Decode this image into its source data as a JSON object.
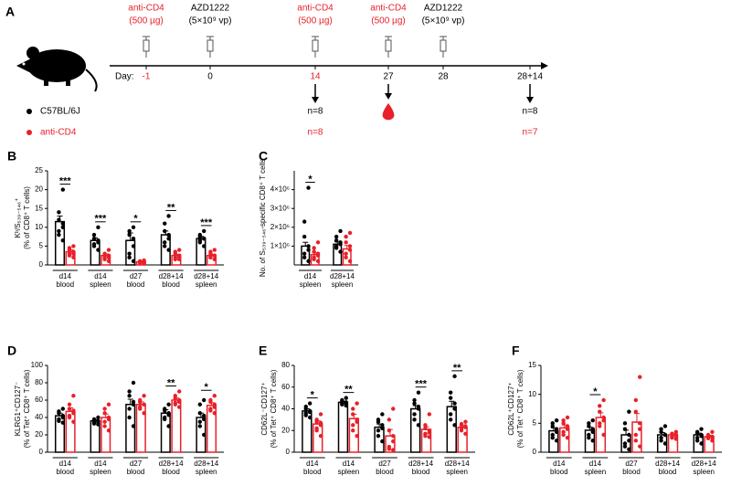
{
  "timeline": {
    "panel": "A",
    "day_label": "Day:",
    "events": [
      {
        "day": "-1",
        "day_color": "#e8202a",
        "treatment": "anti-CD4",
        "dose": "(500 µg)",
        "treatment_color": "#e8202a"
      },
      {
        "day": "0",
        "day_color": "#000000",
        "treatment": "AZD1222",
        "dose": "(5×10⁹ vp)",
        "treatment_color": "#000000"
      },
      {
        "day": "14",
        "day_color": "#e8202a",
        "treatment": "anti-CD4",
        "dose": "(500 µg)",
        "treatment_color": "#e8202a",
        "readout": "arrow",
        "n": [
          "n=8",
          "n=8"
        ]
      },
      {
        "day": "27",
        "day_color": "#000000",
        "treatment": "anti-CD4",
        "dose": "(500 µg)",
        "treatment_color": "#e8202a",
        "readout": "blood"
      },
      {
        "day": "28",
        "day_color": "#000000",
        "treatment": "AZD1222",
        "dose": "(5×10⁹ vp)",
        "treatment_color": "#000000"
      },
      {
        "day": "28+14",
        "day_color": "#000000",
        "readout": "arrow",
        "n": [
          "n=8",
          "n=7"
        ]
      }
    ]
  },
  "chart_data": [
    {
      "type": "bar",
      "panel": "B",
      "y_label": [
        "Kᵇ/S₅₃₉₋₅₄₆⁺",
        "(% of CD8⁺ T cells)"
      ],
      "categories": [
        "d14\nblood",
        "d14\nspleen",
        "d27\nblood",
        "d28+14\nblood",
        "d28+14\nspleen"
      ],
      "ylim": [
        0,
        25
      ],
      "yticks": [
        0,
        5,
        10,
        15,
        20,
        25
      ],
      "series": [
        {
          "name": "C57BL/6J",
          "color": "#000000",
          "values": [
            11.5,
            6.5,
            6.5,
            8,
            7
          ],
          "errors": [
            1.5,
            0.7,
            2,
            1,
            0.6
          ],
          "points": [
            [
              20,
              14,
              12,
              11,
              10,
              9,
              8,
              6.5
            ],
            [
              10,
              8,
              7,
              6.5,
              6,
              5.5,
              5,
              4
            ],
            [
              10,
              9,
              8,
              7,
              5,
              3,
              2,
              1
            ],
            [
              13,
              11,
              9,
              8,
              7,
              6,
              5,
              4
            ],
            [
              9,
              8,
              7.5,
              7,
              7,
              6.5,
              6,
              5
            ]
          ]
        },
        {
          "name": "anti-CD4",
          "color": "#e8202a",
          "values": [
            3.5,
            2.5,
            0.8,
            2.5,
            2.5
          ],
          "errors": [
            0.5,
            0.4,
            0.1,
            0.3,
            0.3
          ],
          "points": [
            [
              5,
              4.5,
              4,
              3.5,
              3,
              3,
              2.5,
              2
            ],
            [
              4,
              3,
              2.5,
              2.5,
              2,
              2,
              1.5,
              1
            ],
            [
              1.2,
              1,
              0.9,
              0.8,
              0.7,
              0.6,
              0.5,
              0.4
            ],
            [
              4,
              3.5,
              3,
              2.5,
              2,
              2,
              1.5,
              1.5
            ],
            [
              4,
              3.5,
              3,
              2.5,
              2.5,
              2,
              2,
              1.5
            ]
          ]
        }
      ],
      "significance": [
        "***",
        "***",
        "*",
        "**",
        "***"
      ]
    },
    {
      "type": "bar",
      "panel": "C",
      "y_label": [
        "No. of S₅₃₉₋₅₄₆-specific CD8⁺ T cells"
      ],
      "categories": [
        "d14\nspleen",
        "d28+14\nspleen"
      ],
      "ylim": [
        0,
        5000000
      ],
      "yticks": [
        {
          "value": 1000000,
          "label": "1×10⁶"
        },
        {
          "value": 2000000,
          "label": "2×10⁶"
        },
        {
          "value": 3000000,
          "label": "3×10⁶"
        },
        {
          "value": 4000000,
          "label": "4×10⁶"
        }
      ],
      "series": [
        {
          "name": "C57BL/6J",
          "color": "#000000",
          "values": [
            1000000,
            1100000
          ],
          "errors": [
            200000,
            120000
          ],
          "points": [
            [
              4100000,
              2300000,
              1500000,
              1000000,
              800000,
              600000,
              400000,
              200000
            ],
            [
              1800000,
              1500000,
              1300000,
              1200000,
              1100000,
              1000000,
              900000,
              700000
            ]
          ]
        },
        {
          "name": "anti-CD4",
          "color": "#e8202a",
          "values": [
            550000,
            850000
          ],
          "errors": [
            100000,
            180000
          ],
          "points": [
            [
              1200000,
              900000,
              700000,
              600000,
              500000,
              400000,
              300000,
              200000
            ],
            [
              1700000,
              1500000,
              1200000,
              1000000,
              800000,
              600000,
              400000,
              200000
            ]
          ]
        }
      ],
      "significance": [
        "*",
        null
      ]
    },
    {
      "type": "bar",
      "panel": "D",
      "y_label": [
        "KLRG1⁺CD127⁻",
        "(% of Tet⁺ CD8⁺ T cells)"
      ],
      "categories": [
        "d14\nblood",
        "d14\nspleen",
        "d27\nblood",
        "d28+14\nblood",
        "d28+14\nspleen"
      ],
      "ylim": [
        0,
        100
      ],
      "yticks": [
        0,
        20,
        40,
        60,
        80,
        100
      ],
      "series": [
        {
          "name": "C57BL/6J",
          "color": "#000000",
          "values": [
            42,
            36,
            55,
            45,
            40
          ],
          "errors": [
            3,
            1.5,
            6,
            4,
            5
          ],
          "points": [
            [
              50,
              47,
              45,
              42,
              40,
              38,
              36,
              34
            ],
            [
              40,
              38,
              37,
              36,
              35,
              34,
              33,
              32
            ],
            [
              80,
              70,
              65,
              58,
              55,
              50,
              40,
              30
            ],
            [
              55,
              50,
              48,
              45,
              43,
              40,
              38,
              30
            ],
            [
              60,
              55,
              45,
              42,
              38,
              35,
              30,
              20
            ]
          ]
        },
        {
          "name": "anti-CD4",
          "color": "#e8202a",
          "values": [
            47,
            40,
            55,
            60,
            54
          ],
          "errors": [
            4,
            4,
            3,
            2.5,
            3
          ],
          "points": [
            [
              65,
              55,
              50,
              48,
              45,
              42,
              40,
              35
            ],
            [
              55,
              50,
              45,
              40,
              38,
              35,
              30,
              25
            ],
            [
              65,
              60,
              58,
              55,
              55,
              52,
              50,
              45
            ],
            [
              70,
              65,
              62,
              60,
              58,
              57,
              55,
              52
            ],
            [
              65,
              60,
              58,
              55,
              52,
              50,
              48,
              45
            ]
          ]
        }
      ],
      "significance": [
        null,
        null,
        null,
        "**",
        "*"
      ]
    },
    {
      "type": "bar",
      "panel": "E",
      "y_label": [
        "CD62L⁻CD127⁺",
        "(% of Tet⁺ CD8⁺ T cells)"
      ],
      "categories": [
        "d14\nblood",
        "d14\nspleen",
        "d27\nblood",
        "d28+14\nblood",
        "d28+14\nspleen"
      ],
      "ylim": [
        0,
        80
      ],
      "yticks": [
        0,
        20,
        40,
        60,
        80
      ],
      "series": [
        {
          "name": "C57BL/6J",
          "color": "#000000",
          "values": [
            38,
            46,
            23,
            40,
            42
          ],
          "errors": [
            2,
            1,
            3,
            3,
            5
          ],
          "points": [
            [
              45,
              42,
              40,
              38,
              37,
              36,
              34,
              32
            ],
            [
              50,
              48,
              47,
              46,
              45,
              45,
              44,
              43
            ],
            [
              35,
              30,
              28,
              25,
              22,
              20,
              15,
              10
            ],
            [
              55,
              48,
              45,
              42,
              40,
              35,
              30,
              25
            ],
            [
              70,
              55,
              50,
              45,
              40,
              35,
              30,
              25
            ]
          ]
        },
        {
          "name": "anti-CD4",
          "color": "#e8202a",
          "values": [
            26,
            31,
            15,
            21,
            23
          ],
          "errors": [
            3,
            4,
            6,
            2.5,
            1.5
          ],
          "points": [
            [
              35,
              30,
              28,
              27,
              25,
              22,
              20,
              15
            ],
            [
              45,
              40,
              35,
              30,
              28,
              25,
              20,
              15
            ],
            [
              40,
              30,
              20,
              15,
              10,
              5,
              3,
              2
            ],
            [
              35,
              25,
              22,
              20,
              18,
              17,
              15,
              14
            ],
            [
              28,
              26,
              25,
              24,
              23,
              22,
              20,
              17
            ]
          ]
        }
      ],
      "significance": [
        "*",
        "**",
        null,
        "***",
        "**"
      ]
    },
    {
      "type": "bar",
      "panel": "F",
      "y_label": [
        "CD62L⁺CD127⁺",
        "(% of Tet⁺ CD8⁺ T cells)"
      ],
      "categories": [
        "d14\nblood",
        "d14\nspleen",
        "d27\nblood",
        "d28+14\nblood",
        "d28+14\nspleen"
      ],
      "ylim": [
        0,
        15
      ],
      "yticks": [
        0,
        5,
        10,
        15
      ],
      "series": [
        {
          "name": "C57BL/6J",
          "color": "#000000",
          "values": [
            3.7,
            3.8,
            3,
            3,
            3
          ],
          "errors": [
            0.5,
            0.5,
            0.8,
            0.4,
            0.3
          ],
          "points": [
            [
              5.5,
              5,
              4.5,
              4,
              3.5,
              3,
              2.5,
              2
            ],
            [
              5.5,
              5,
              4.5,
              4,
              3.5,
              3,
              2.5,
              2
            ],
            [
              7,
              5,
              4,
              3,
              2,
              1.5,
              1,
              0.5
            ],
            [
              4.5,
              4,
              3.5,
              3,
              3,
              2.5,
              2,
              1.5
            ],
            [
              4,
              3.5,
              3.2,
              3,
              2.8,
              2.5,
              2,
              1.5
            ]
          ]
        },
        {
          "name": "anti-CD4",
          "color": "#e8202a",
          "values": [
            4.2,
            6,
            5.2,
            3,
            2.7
          ],
          "errors": [
            0.5,
            0.8,
            1.5,
            0.2,
            0.2
          ],
          "points": [
            [
              6,
              5.5,
              5,
              4.5,
              4,
              3.5,
              3,
              2.5
            ],
            [
              9,
              8,
              7,
              6,
              5.5,
              5,
              4.5,
              3
            ],
            [
              13,
              9,
              7,
              5,
              4,
              3,
              2,
              1
            ],
            [
              3.5,
              3.2,
              3,
              3,
              2.8,
              2.7,
              2.5,
              2.3
            ],
            [
              3.5,
              3,
              2.8,
              2.7,
              2.6,
              2.5,
              2.4,
              2
            ]
          ]
        }
      ],
      "significance": [
        null,
        "*",
        null,
        null,
        null
      ]
    }
  ]
}
